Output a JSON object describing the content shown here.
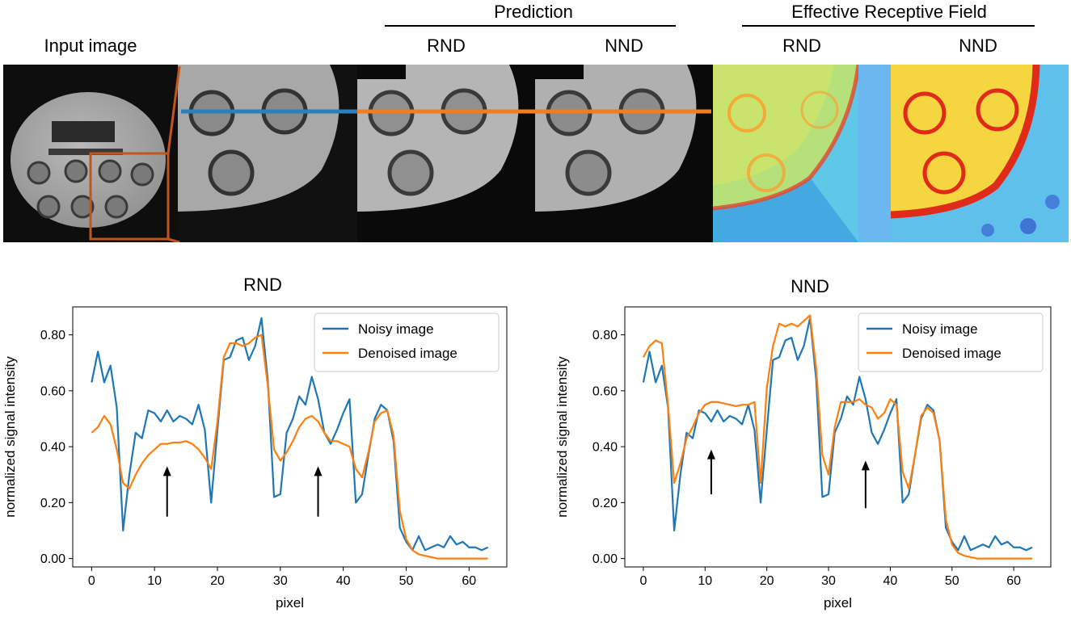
{
  "figure": {
    "input_label": "Input image",
    "prediction_label": "Prediction",
    "erf_label": "Effective Receptive Field",
    "pred_rnd_label": "RND",
    "pred_nnd_label": "NND",
    "erf_rnd_label": "RND",
    "erf_nnd_label": "NND"
  },
  "colors": {
    "noisy": "#1f77b4",
    "denoised": "#ff7f0e",
    "crop_box": "#c4541c",
    "profile_left": "#2e7ebc",
    "profile_right": "#ee7d24"
  },
  "chart_data": [
    {
      "type": "line",
      "title": "RND",
      "xlabel": "pixel",
      "ylabel": "normalized signal intensity",
      "xlim": [
        -3,
        66
      ],
      "ylim": [
        -0.03,
        0.9
      ],
      "xticks": [
        0,
        10,
        20,
        30,
        40,
        50,
        60
      ],
      "yticks": [
        0.0,
        0.2,
        0.4,
        0.6,
        0.8
      ],
      "ytick_labels": [
        "0.00",
        "0.20",
        "0.40",
        "0.60",
        "0.80"
      ],
      "legend_position": "top-right",
      "series": [
        {
          "name": "Noisy image",
          "color": "#1f77b4",
          "values": [
            0.63,
            0.74,
            0.63,
            0.69,
            0.54,
            0.1,
            0.3,
            0.45,
            0.43,
            0.53,
            0.52,
            0.49,
            0.53,
            0.49,
            0.51,
            0.5,
            0.48,
            0.55,
            0.46,
            0.2,
            0.46,
            0.71,
            0.72,
            0.78,
            0.79,
            0.71,
            0.76,
            0.86,
            0.64,
            0.22,
            0.23,
            0.45,
            0.5,
            0.58,
            0.55,
            0.65,
            0.57,
            0.45,
            0.41,
            0.46,
            0.52,
            0.57,
            0.2,
            0.23,
            0.37,
            0.5,
            0.55,
            0.53,
            0.42,
            0.11,
            0.06,
            0.03,
            0.08,
            0.03,
            0.04,
            0.05,
            0.04,
            0.08,
            0.05,
            0.06,
            0.04,
            0.04,
            0.03,
            0.04
          ]
        },
        {
          "name": "Denoised image",
          "color": "#ff7f0e",
          "values": [
            0.45,
            0.47,
            0.51,
            0.48,
            0.39,
            0.27,
            0.25,
            0.3,
            0.34,
            0.37,
            0.39,
            0.41,
            0.41,
            0.415,
            0.415,
            0.42,
            0.41,
            0.39,
            0.36,
            0.32,
            0.49,
            0.72,
            0.77,
            0.77,
            0.76,
            0.77,
            0.79,
            0.8,
            0.62,
            0.39,
            0.35,
            0.38,
            0.42,
            0.47,
            0.5,
            0.51,
            0.49,
            0.45,
            0.42,
            0.42,
            0.41,
            0.4,
            0.32,
            0.29,
            0.38,
            0.49,
            0.52,
            0.53,
            0.44,
            0.17,
            0.07,
            0.03,
            0.015,
            0.01,
            0.005,
            0.0,
            0.0,
            0.0,
            0.0,
            0.0,
            0.0,
            0.0,
            0.0,
            0.0
          ]
        }
      ],
      "annotations": [
        {
          "type": "arrow",
          "x": 12,
          "y_start": 0.15,
          "y_end": 0.33
        },
        {
          "type": "arrow",
          "x": 36,
          "y_start": 0.15,
          "y_end": 0.33
        }
      ]
    },
    {
      "type": "line",
      "title": "NND",
      "xlabel": "pixel",
      "ylabel": "normalized signal intensity",
      "xlim": [
        -3,
        66
      ],
      "ylim": [
        -0.03,
        0.9
      ],
      "xticks": [
        0,
        10,
        20,
        30,
        40,
        50,
        60
      ],
      "yticks": [
        0.0,
        0.2,
        0.4,
        0.6,
        0.8
      ],
      "ytick_labels": [
        "0.00",
        "0.20",
        "0.40",
        "0.60",
        "0.80"
      ],
      "legend_position": "top-right",
      "series": [
        {
          "name": "Noisy image",
          "color": "#1f77b4",
          "values": [
            0.63,
            0.74,
            0.63,
            0.69,
            0.54,
            0.1,
            0.3,
            0.45,
            0.43,
            0.53,
            0.52,
            0.49,
            0.53,
            0.49,
            0.51,
            0.5,
            0.48,
            0.55,
            0.46,
            0.2,
            0.46,
            0.71,
            0.72,
            0.78,
            0.79,
            0.71,
            0.76,
            0.86,
            0.64,
            0.22,
            0.23,
            0.45,
            0.5,
            0.58,
            0.55,
            0.65,
            0.57,
            0.45,
            0.41,
            0.46,
            0.52,
            0.57,
            0.2,
            0.23,
            0.37,
            0.5,
            0.55,
            0.53,
            0.42,
            0.11,
            0.06,
            0.03,
            0.08,
            0.03,
            0.04,
            0.05,
            0.04,
            0.08,
            0.05,
            0.06,
            0.04,
            0.04,
            0.03,
            0.04
          ]
        },
        {
          "name": "Denoised image",
          "color": "#ff7f0e",
          "values": [
            0.72,
            0.76,
            0.78,
            0.77,
            0.55,
            0.27,
            0.34,
            0.43,
            0.47,
            0.52,
            0.55,
            0.56,
            0.56,
            0.555,
            0.55,
            0.545,
            0.55,
            0.55,
            0.56,
            0.27,
            0.61,
            0.76,
            0.84,
            0.83,
            0.84,
            0.83,
            0.85,
            0.87,
            0.68,
            0.37,
            0.3,
            0.47,
            0.56,
            0.56,
            0.56,
            0.57,
            0.55,
            0.54,
            0.5,
            0.52,
            0.57,
            0.55,
            0.31,
            0.25,
            0.37,
            0.51,
            0.54,
            0.52,
            0.42,
            0.14,
            0.05,
            0.02,
            0.01,
            0.005,
            0.0,
            0.0,
            0.0,
            0.0,
            0.0,
            0.0,
            0.0,
            0.0,
            0.0,
            0.0
          ]
        }
      ],
      "annotations": [
        {
          "type": "arrow",
          "x": 11,
          "y_start": 0.23,
          "y_end": 0.39
        },
        {
          "type": "arrow",
          "x": 36,
          "y_start": 0.18,
          "y_end": 0.35
        }
      ]
    }
  ]
}
